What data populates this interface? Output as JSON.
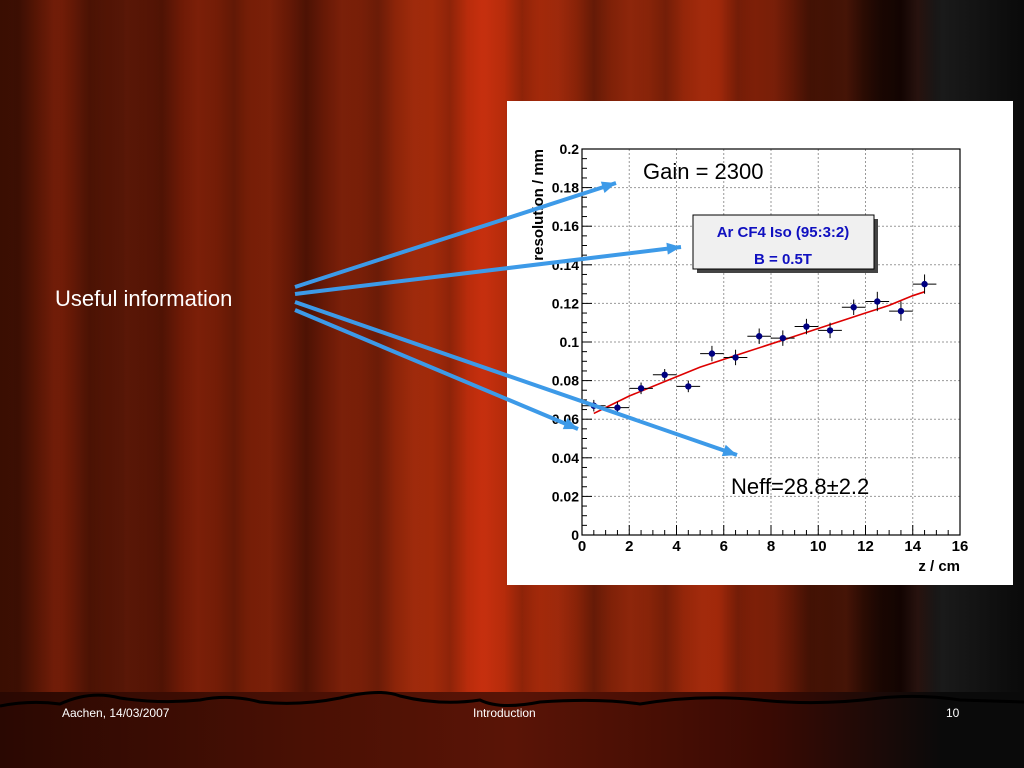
{
  "slide": {
    "label_text": "Useful information",
    "footer_left": "Aachen, 14/03/2007",
    "footer_center": "Introduction",
    "footer_right": "10"
  },
  "colors": {
    "arrow": "#3d9ae8",
    "fit_line": "#dd0000",
    "points": "#000080",
    "legend_text": "#1010c0"
  },
  "chart_data": {
    "type": "scatter",
    "xlabel": "z / cm",
    "ylabel": "resolution / mm",
    "xlim": [
      0,
      16
    ],
    "ylim": [
      0,
      0.2
    ],
    "x_ticks": [
      0,
      2,
      4,
      6,
      8,
      10,
      12,
      14,
      16
    ],
    "y_ticks": [
      0,
      0.02,
      0.04,
      0.06,
      0.08,
      0.1,
      0.12,
      0.14,
      0.16,
      0.18,
      0.2
    ],
    "y_tick_labels": [
      "0",
      "0.02",
      "0.04",
      "0.06",
      "0.08",
      "0.1",
      "0.12",
      "0.14",
      "0.16",
      "0.18",
      "0.2"
    ],
    "grid": true,
    "series": [
      {
        "x": [
          0.5,
          1.5,
          2.5,
          3.5,
          4.5,
          5.5,
          6.5,
          7.5,
          8.5,
          9.5,
          10.5,
          11.5,
          12.5,
          13.5,
          14.5
        ],
        "y": [
          0.067,
          0.066,
          0.076,
          0.083,
          0.077,
          0.094,
          0.092,
          0.103,
          0.102,
          0.108,
          0.106,
          0.118,
          0.121,
          0.116,
          0.13
        ],
        "yerr": [
          0.003,
          0.003,
          0.003,
          0.003,
          0.003,
          0.004,
          0.004,
          0.004,
          0.004,
          0.004,
          0.004,
          0.004,
          0.005,
          0.005,
          0.005
        ],
        "xerr": 0.5
      }
    ],
    "fit": {
      "x": [
        0.5,
        1,
        2,
        3,
        4,
        5,
        6,
        7,
        8,
        9,
        10,
        11,
        12,
        13,
        14,
        14.5
      ],
      "y": [
        0.063,
        0.066,
        0.072,
        0.077,
        0.082,
        0.087,
        0.091,
        0.095,
        0.099,
        0.103,
        0.107,
        0.111,
        0.115,
        0.119,
        0.124,
        0.126
      ]
    },
    "annotations": {
      "gain": "Gain = 2300",
      "neff": "Neff=28.8±2.2",
      "legend_line1": "Ar CF4 Iso (95:3:2)",
      "legend_line2": "B = 0.5T"
    }
  }
}
